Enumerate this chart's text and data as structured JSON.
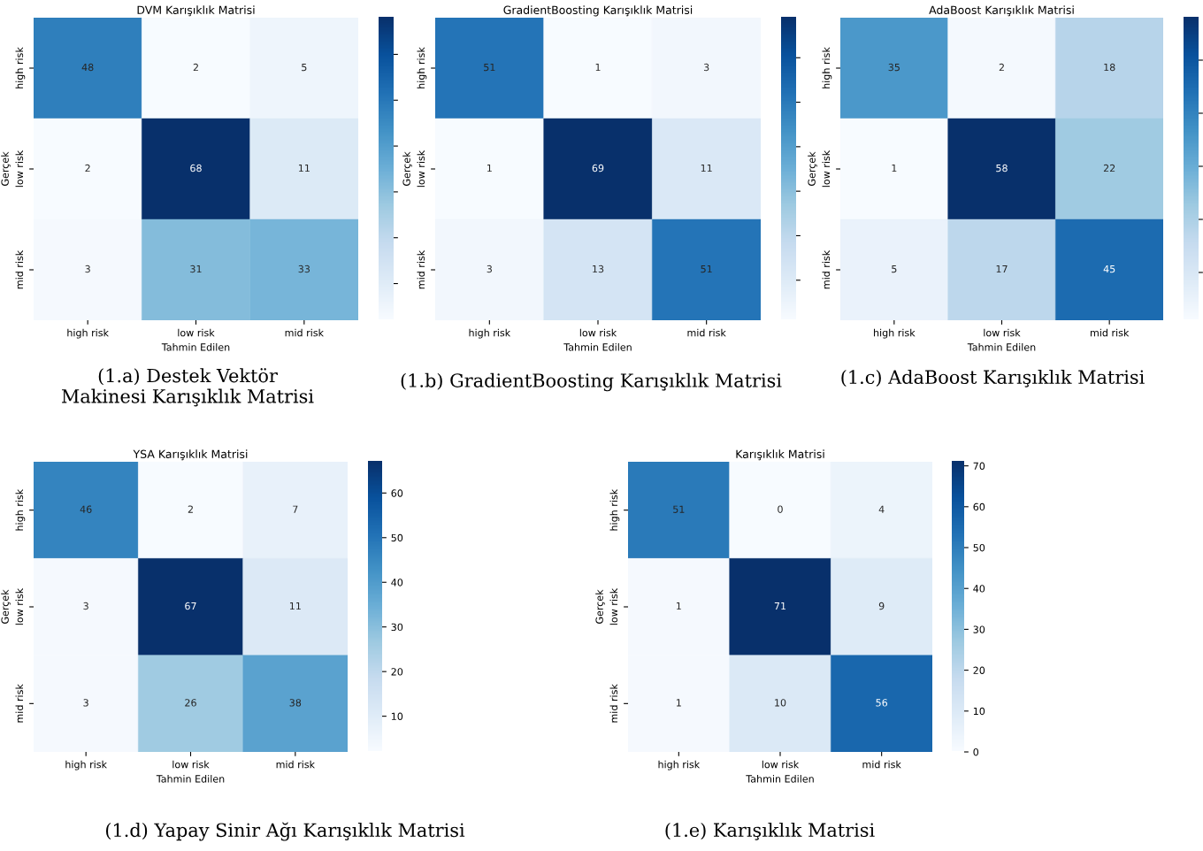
{
  "chart_data": [
    {
      "type": "heatmap",
      "title": "DVM Karışıklık Matrisi",
      "xlabel": "Tahmin Edilen",
      "ylabel": "Gerçek",
      "categories": [
        "high risk",
        "low risk",
        "mid risk"
      ],
      "y_categories": [
        "high risk",
        "low risk",
        "mid risk"
      ],
      "cells": [
        [
          48,
          2,
          5
        ],
        [
          2,
          68,
          11
        ],
        [
          3,
          31,
          33
        ]
      ],
      "data_labels": true,
      "annotations": [
        "(1.a) Destek Vektör Makinesi Karışıklık Matrisi"
      ]
    },
    {
      "type": "heatmap",
      "title": "GradientBoosting Karışıklık Matrisi",
      "xlabel": "Tahmin Edilen",
      "ylabel": "Gerçek",
      "categories": [
        "high risk",
        "low risk",
        "mid risk"
      ],
      "y_categories": [
        "high risk",
        "low risk",
        "mid risk"
      ],
      "cells": [
        [
          51,
          1,
          3
        ],
        [
          1,
          69,
          11
        ],
        [
          3,
          13,
          51
        ]
      ],
      "data_labels": true,
      "annotations": [
        "(1.b) GradientBoosting Karışıklık Matrisi"
      ]
    },
    {
      "type": "heatmap",
      "title": "AdaBoost Karışıklık Matrisi",
      "xlabel": "Tahmin Edilen",
      "ylabel": "Gerçek",
      "categories": [
        "high risk",
        "low risk",
        "mid risk"
      ],
      "y_categories": [
        "high risk",
        "low risk",
        "mid risk"
      ],
      "cells": [
        [
          35,
          2,
          18
        ],
        [
          1,
          58,
          22
        ],
        [
          5,
          17,
          45
        ]
      ],
      "data_labels": true,
      "annotations": [
        "(1.c) AdaBoost Karışıklık Matrisi"
      ]
    },
    {
      "type": "heatmap",
      "title": "YSA Karışıklık Matrisi",
      "xlabel": "Tahmin Edilen",
      "ylabel": "Gerçek",
      "categories": [
        "high risk",
        "low risk",
        "mid risk"
      ],
      "y_categories": [
        "high risk",
        "low risk",
        "mid risk"
      ],
      "cells": [
        [
          46,
          2,
          7
        ],
        [
          3,
          67,
          11
        ],
        [
          3,
          26,
          38
        ]
      ],
      "data_labels": true,
      "clim": [
        2,
        67
      ],
      "cticks": [
        10,
        20,
        30,
        40,
        50,
        60
      ],
      "annotations": [
        "(1.d) Yapay Sinir Ağı Karışıklık Matrisi"
      ]
    },
    {
      "type": "heatmap",
      "title": "Karışıklık Matrisi",
      "xlabel": "Tahmin Edilen",
      "ylabel": "Gerçek",
      "categories": [
        "high risk",
        "low risk",
        "mid risk"
      ],
      "y_categories": [
        "high risk",
        "low risk",
        "mid risk"
      ],
      "cells": [
        [
          51,
          0,
          4
        ],
        [
          1,
          71,
          9
        ],
        [
          1,
          10,
          56
        ]
      ],
      "data_labels": true,
      "clim": [
        0,
        71
      ],
      "cticks": [
        0,
        10,
        20,
        30,
        40,
        50,
        60,
        70
      ],
      "annotations": [
        "(1.e) Karışıklık Matrisi"
      ]
    }
  ]
}
